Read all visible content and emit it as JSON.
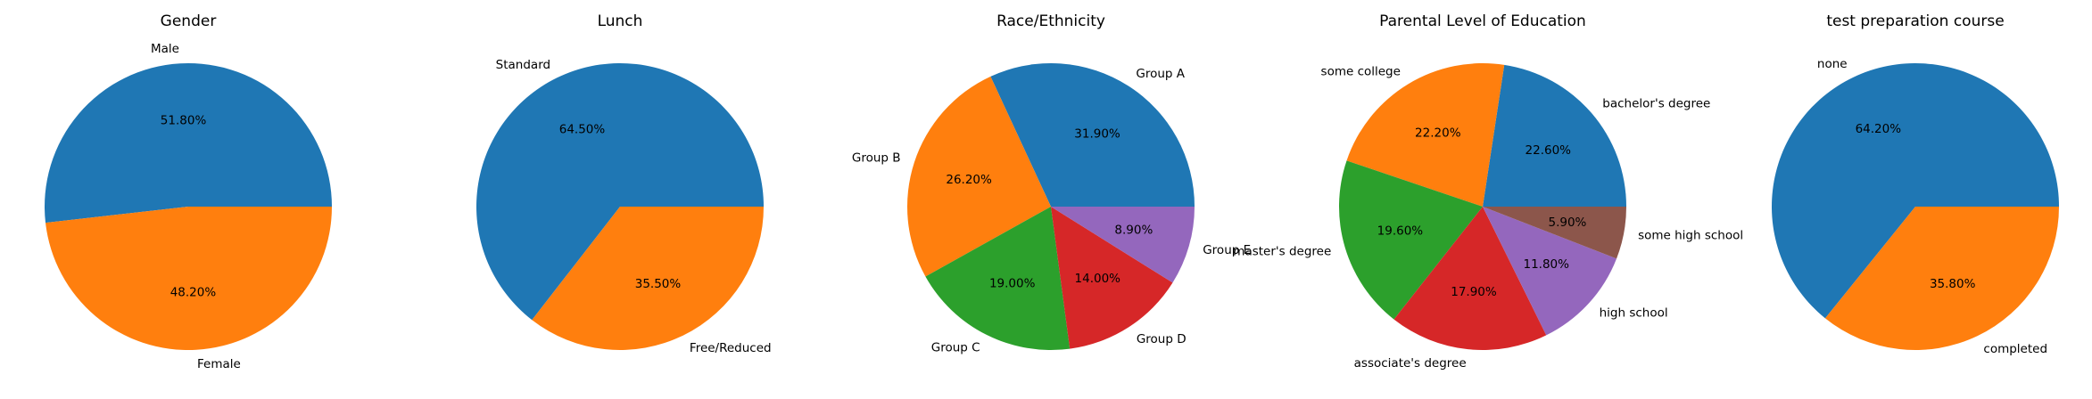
{
  "chart_data": [
    {
      "type": "pie",
      "title": "Gender",
      "categories": [
        "Male",
        "Female"
      ],
      "values": [
        51.8,
        48.2
      ],
      "value_labels": [
        "51.80%",
        "48.20%"
      ],
      "colors": [
        "#1f77b4",
        "#ff7f0e"
      ],
      "start_angle_deg": 0,
      "direction": "counterclockwise"
    },
    {
      "type": "pie",
      "title": "Lunch",
      "categories": [
        "Standard",
        "Free/Reduced"
      ],
      "values": [
        64.5,
        35.5
      ],
      "value_labels": [
        "64.50%",
        "35.50%"
      ],
      "colors": [
        "#1f77b4",
        "#ff7f0e"
      ],
      "start_angle_deg": 0,
      "direction": "counterclockwise"
    },
    {
      "type": "pie",
      "title": "Race/Ethnicity",
      "categories": [
        "Group A",
        "Group B",
        "Group C",
        "Group D",
        "Group E"
      ],
      "values": [
        31.9,
        26.2,
        19.0,
        14.0,
        8.9
      ],
      "value_labels": [
        "31.90%",
        "26.20%",
        "19.00%",
        "14.00%",
        "8.90%"
      ],
      "colors": [
        "#1f77b4",
        "#ff7f0e",
        "#2ca02c",
        "#d62728",
        "#9467bd"
      ],
      "start_angle_deg": 0,
      "direction": "counterclockwise"
    },
    {
      "type": "pie",
      "title": "Parental Level of Education",
      "categories": [
        "bachelor's degree",
        "some college",
        "master's degree",
        "associate's degree",
        "high school",
        "some high school"
      ],
      "values": [
        22.6,
        22.2,
        19.6,
        17.9,
        11.8,
        5.9
      ],
      "value_labels": [
        "22.60%",
        "22.20%",
        "19.60%",
        "17.90%",
        "11.80%",
        "5.90%"
      ],
      "colors": [
        "#1f77b4",
        "#ff7f0e",
        "#2ca02c",
        "#d62728",
        "#9467bd",
        "#8c564b"
      ],
      "start_angle_deg": 0,
      "direction": "counterclockwise"
    },
    {
      "type": "pie",
      "title": "test preparation course",
      "categories": [
        "none",
        "completed"
      ],
      "values": [
        64.2,
        35.8
      ],
      "value_labels": [
        "64.20%",
        "35.80%"
      ],
      "colors": [
        "#1f77b4",
        "#ff7f0e"
      ],
      "start_angle_deg": 0,
      "direction": "counterclockwise"
    }
  ]
}
